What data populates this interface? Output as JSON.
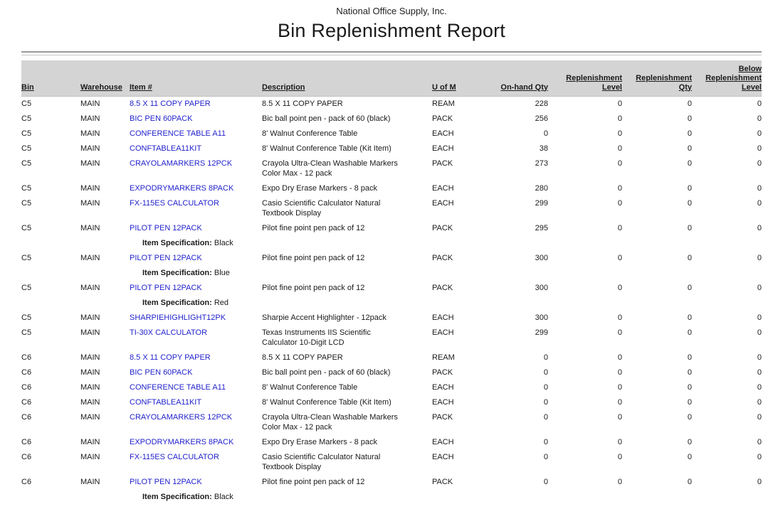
{
  "report": {
    "company": "National Office Supply, Inc.",
    "title": "Bin Replenishment Report"
  },
  "colors": {
    "header_band": "#d4d4d4",
    "item_link": "#2222cc",
    "rule_dark": "#9a9a9a",
    "rule_light": "#c9c9c9"
  },
  "table": {
    "spec_label": "Item Specification:",
    "columns": [
      {
        "key": "bin",
        "lines": [
          "Bin"
        ],
        "align": "left"
      },
      {
        "key": "warehouse",
        "lines": [
          "Warehouse"
        ],
        "align": "left"
      },
      {
        "key": "item",
        "lines": [
          "Item #"
        ],
        "align": "left"
      },
      {
        "key": "description",
        "lines": [
          "Description"
        ],
        "align": "left"
      },
      {
        "key": "uom",
        "lines": [
          "U of M"
        ],
        "align": "left"
      },
      {
        "key": "onhand",
        "lines": [
          "On-hand Qty"
        ],
        "align": "right"
      },
      {
        "key": "repl_level",
        "lines": [
          "Replenishment",
          "Level"
        ],
        "align": "right"
      },
      {
        "key": "repl_qty",
        "lines": [
          "Replenishment",
          "Qty"
        ],
        "align": "right"
      },
      {
        "key": "below_repl_level",
        "lines": [
          "Below",
          "Replenishment",
          "Level"
        ],
        "align": "right"
      }
    ],
    "rows": [
      {
        "bin": "C5",
        "warehouse": "MAIN",
        "item": "8.5 X 11 COPY PAPER",
        "description": [
          "8.5 X 11 COPY PAPER"
        ],
        "uom": "REAM",
        "onhand": "228",
        "repl_level": "0",
        "repl_qty": "0",
        "below_repl_level": "0"
      },
      {
        "bin": "C5",
        "warehouse": "MAIN",
        "item": "BIC PEN 60PACK",
        "description": [
          "Bic ball point pen - pack of 60 (black)"
        ],
        "uom": "PACK",
        "onhand": "256",
        "repl_level": "0",
        "repl_qty": "0",
        "below_repl_level": "0"
      },
      {
        "bin": "C5",
        "warehouse": "MAIN",
        "item": "CONFERENCE TABLE A11",
        "description": [
          "8' Walnut Conference Table"
        ],
        "uom": "EACH",
        "onhand": "0",
        "repl_level": "0",
        "repl_qty": "0",
        "below_repl_level": "0"
      },
      {
        "bin": "C5",
        "warehouse": "MAIN",
        "item": "CONFTABLEA11KIT",
        "description": [
          "8' Walnut Conference Table (Kit Item)"
        ],
        "uom": "EACH",
        "onhand": "38",
        "repl_level": "0",
        "repl_qty": "0",
        "below_repl_level": "0"
      },
      {
        "bin": "C5",
        "warehouse": "MAIN",
        "item": "CRAYOLAMARKERS 12PCK",
        "description": [
          "Crayola Ultra-Clean Washable Markers",
          "Color Max - 12 pack"
        ],
        "uom": "PACK",
        "onhand": "273",
        "repl_level": "0",
        "repl_qty": "0",
        "below_repl_level": "0"
      },
      {
        "bin": "C5",
        "warehouse": "MAIN",
        "item": "EXPODRYMARKERS 8PACK",
        "description": [
          "Expo Dry Erase Markers - 8 pack"
        ],
        "uom": "EACH",
        "onhand": "280",
        "repl_level": "0",
        "repl_qty": "0",
        "below_repl_level": "0"
      },
      {
        "bin": "C5",
        "warehouse": "MAIN",
        "item": "FX-115ES CALCULATOR",
        "description": [
          "Casio Scientific Calculator Natural",
          "Textbook Display"
        ],
        "uom": "EACH",
        "onhand": "299",
        "repl_level": "0",
        "repl_qty": "0",
        "below_repl_level": "0"
      },
      {
        "bin": "C5",
        "warehouse": "MAIN",
        "item": "PILOT PEN 12PACK",
        "description": [
          "Pilot fine point pen pack of 12"
        ],
        "uom": "PACK",
        "onhand": "295",
        "repl_level": "0",
        "repl_qty": "0",
        "below_repl_level": "0",
        "spec": "Black"
      },
      {
        "bin": "C5",
        "warehouse": "MAIN",
        "item": "PILOT PEN 12PACK",
        "description": [
          "Pilot fine point pen pack of 12"
        ],
        "uom": "PACK",
        "onhand": "300",
        "repl_level": "0",
        "repl_qty": "0",
        "below_repl_level": "0",
        "spec": "Blue"
      },
      {
        "bin": "C5",
        "warehouse": "MAIN",
        "item": "PILOT PEN 12PACK",
        "description": [
          "Pilot fine point pen pack of 12"
        ],
        "uom": "PACK",
        "onhand": "300",
        "repl_level": "0",
        "repl_qty": "0",
        "below_repl_level": "0",
        "spec": "Red"
      },
      {
        "bin": "C5",
        "warehouse": "MAIN",
        "item": "SHARPIEHIGHLIGHT12PK",
        "description": [
          "Sharpie Accent Highlighter - 12pack"
        ],
        "uom": "EACH",
        "onhand": "300",
        "repl_level": "0",
        "repl_qty": "0",
        "below_repl_level": "0"
      },
      {
        "bin": "C5",
        "warehouse": "MAIN",
        "item": "TI-30X CALCULATOR",
        "description": [
          "Texas Instruments IIS Scientific",
          "Calculator 10-Digit LCD"
        ],
        "uom": "EACH",
        "onhand": "299",
        "repl_level": "0",
        "repl_qty": "0",
        "below_repl_level": "0"
      },
      {
        "bin": "C6",
        "warehouse": "MAIN",
        "item": "8.5 X 11 COPY PAPER",
        "description": [
          "8.5 X 11 COPY PAPER"
        ],
        "uom": "REAM",
        "onhand": "0",
        "repl_level": "0",
        "repl_qty": "0",
        "below_repl_level": "0"
      },
      {
        "bin": "C6",
        "warehouse": "MAIN",
        "item": "BIC PEN 60PACK",
        "description": [
          "Bic ball point pen - pack of 60 (black)"
        ],
        "uom": "PACK",
        "onhand": "0",
        "repl_level": "0",
        "repl_qty": "0",
        "below_repl_level": "0"
      },
      {
        "bin": "C6",
        "warehouse": "MAIN",
        "item": "CONFERENCE TABLE A11",
        "description": [
          "8' Walnut Conference Table"
        ],
        "uom": "EACH",
        "onhand": "0",
        "repl_level": "0",
        "repl_qty": "0",
        "below_repl_level": "0"
      },
      {
        "bin": "C6",
        "warehouse": "MAIN",
        "item": "CONFTABLEA11KIT",
        "description": [
          "8' Walnut Conference Table (Kit Item)"
        ],
        "uom": "EACH",
        "onhand": "0",
        "repl_level": "0",
        "repl_qty": "0",
        "below_repl_level": "0"
      },
      {
        "bin": "C6",
        "warehouse": "MAIN",
        "item": "CRAYOLAMARKERS 12PCK",
        "description": [
          "Crayola Ultra-Clean Washable Markers",
          "Color Max - 12 pack"
        ],
        "uom": "PACK",
        "onhand": "0",
        "repl_level": "0",
        "repl_qty": "0",
        "below_repl_level": "0"
      },
      {
        "bin": "C6",
        "warehouse": "MAIN",
        "item": "EXPODRYMARKERS 8PACK",
        "description": [
          "Expo Dry Erase Markers - 8 pack"
        ],
        "uom": "EACH",
        "onhand": "0",
        "repl_level": "0",
        "repl_qty": "0",
        "below_repl_level": "0"
      },
      {
        "bin": "C6",
        "warehouse": "MAIN",
        "item": "FX-115ES CALCULATOR",
        "description": [
          "Casio Scientific Calculator Natural",
          "Textbook Display"
        ],
        "uom": "EACH",
        "onhand": "0",
        "repl_level": "0",
        "repl_qty": "0",
        "below_repl_level": "0"
      },
      {
        "bin": "C6",
        "warehouse": "MAIN",
        "item": "PILOT PEN 12PACK",
        "description": [
          "Pilot fine point pen pack of 12"
        ],
        "uom": "PACK",
        "onhand": "0",
        "repl_level": "0",
        "repl_qty": "0",
        "below_repl_level": "0",
        "spec": "Black"
      }
    ]
  }
}
